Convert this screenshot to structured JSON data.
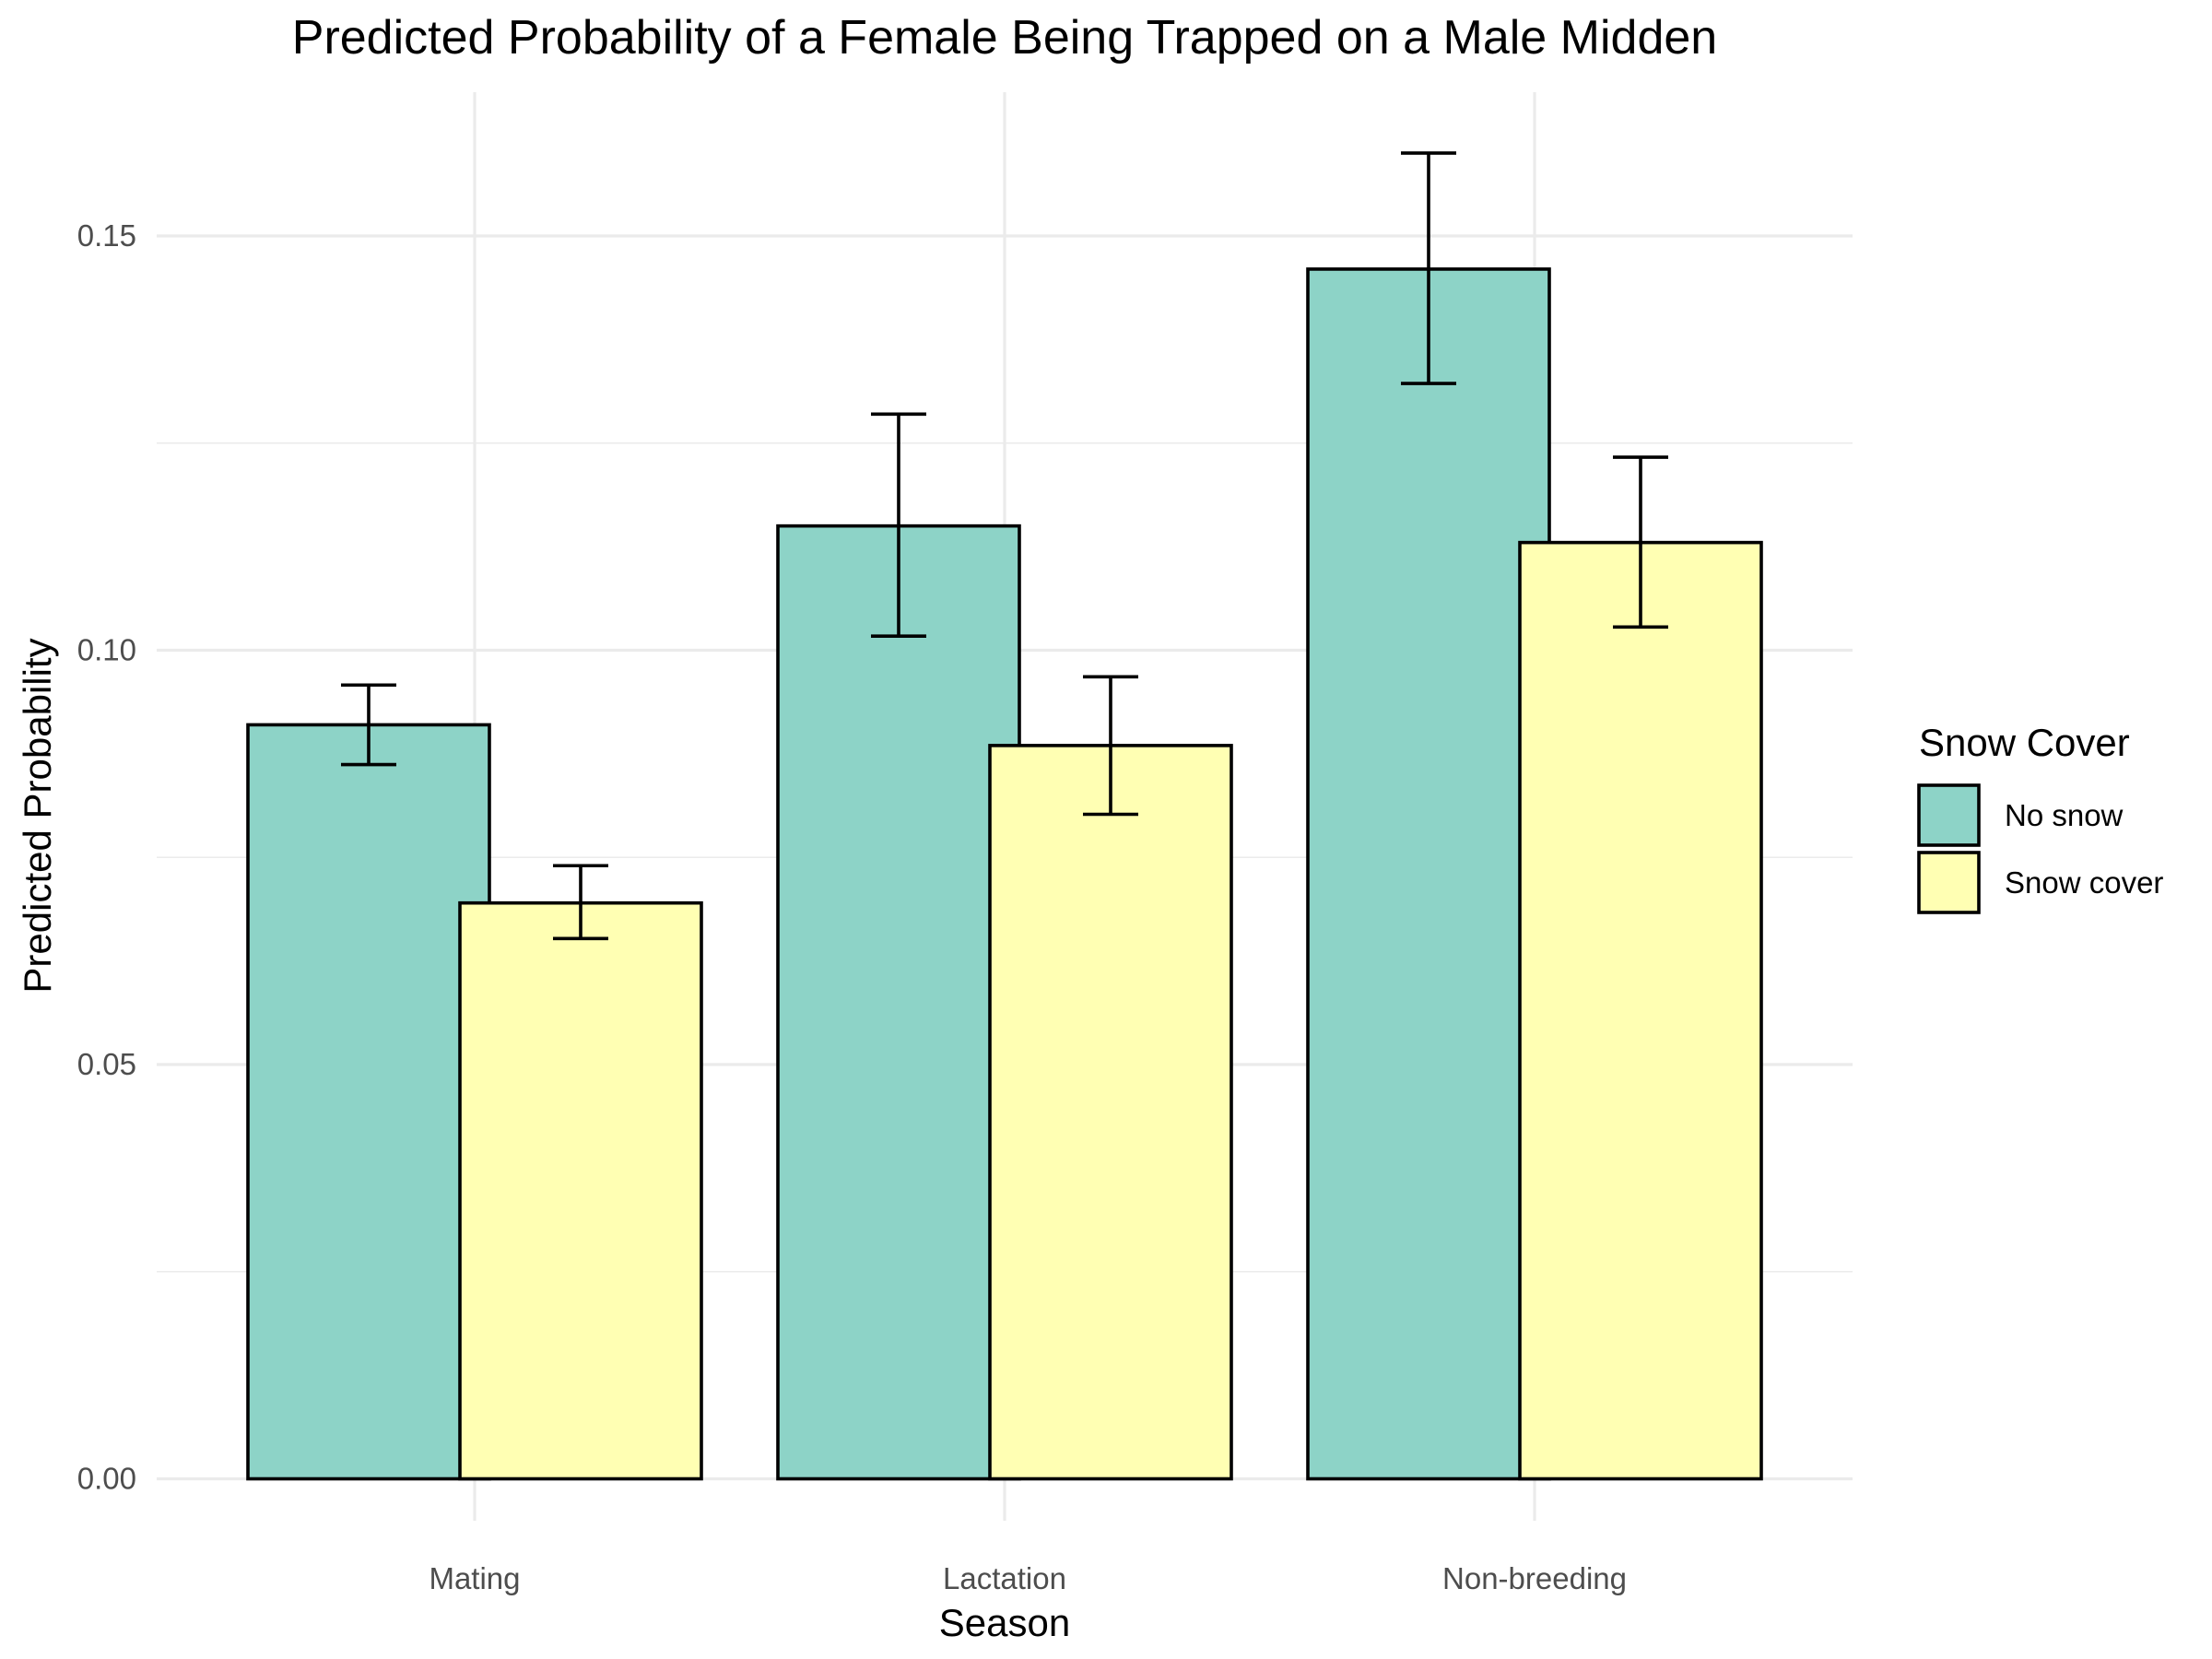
{
  "chart_data": {
    "type": "bar",
    "title": "Predicted Probability of a Female Being Trapped on a Male Midden",
    "xlabel": "Season",
    "ylabel": "Predicted Probability",
    "categories": [
      "Mating",
      "Lactation",
      "Non-breeding"
    ],
    "ylim": [
      -0.004,
      0.168
    ],
    "yticks": [
      0.0,
      0.05,
      0.1,
      0.15
    ],
    "ytick_labels": [
      "0.00",
      "0.05",
      "0.10",
      "0.15"
    ],
    "grid": true,
    "legend": {
      "title": "Snow Cover",
      "position": "right"
    },
    "series": [
      {
        "name": "No snow",
        "color": "#8DD3C7",
        "values": [
          0.091,
          0.115,
          0.146
        ],
        "lower": [
          0.0862,
          0.1017,
          0.1322
        ],
        "upper": [
          0.0958,
          0.1285,
          0.16
        ]
      },
      {
        "name": "Snow cover",
        "color": "#FFFFB3",
        "values": [
          0.0695,
          0.0885,
          0.113
        ],
        "lower": [
          0.0652,
          0.0802,
          0.1028
        ],
        "upper": [
          0.074,
          0.0968,
          0.1233
        ]
      }
    ]
  }
}
